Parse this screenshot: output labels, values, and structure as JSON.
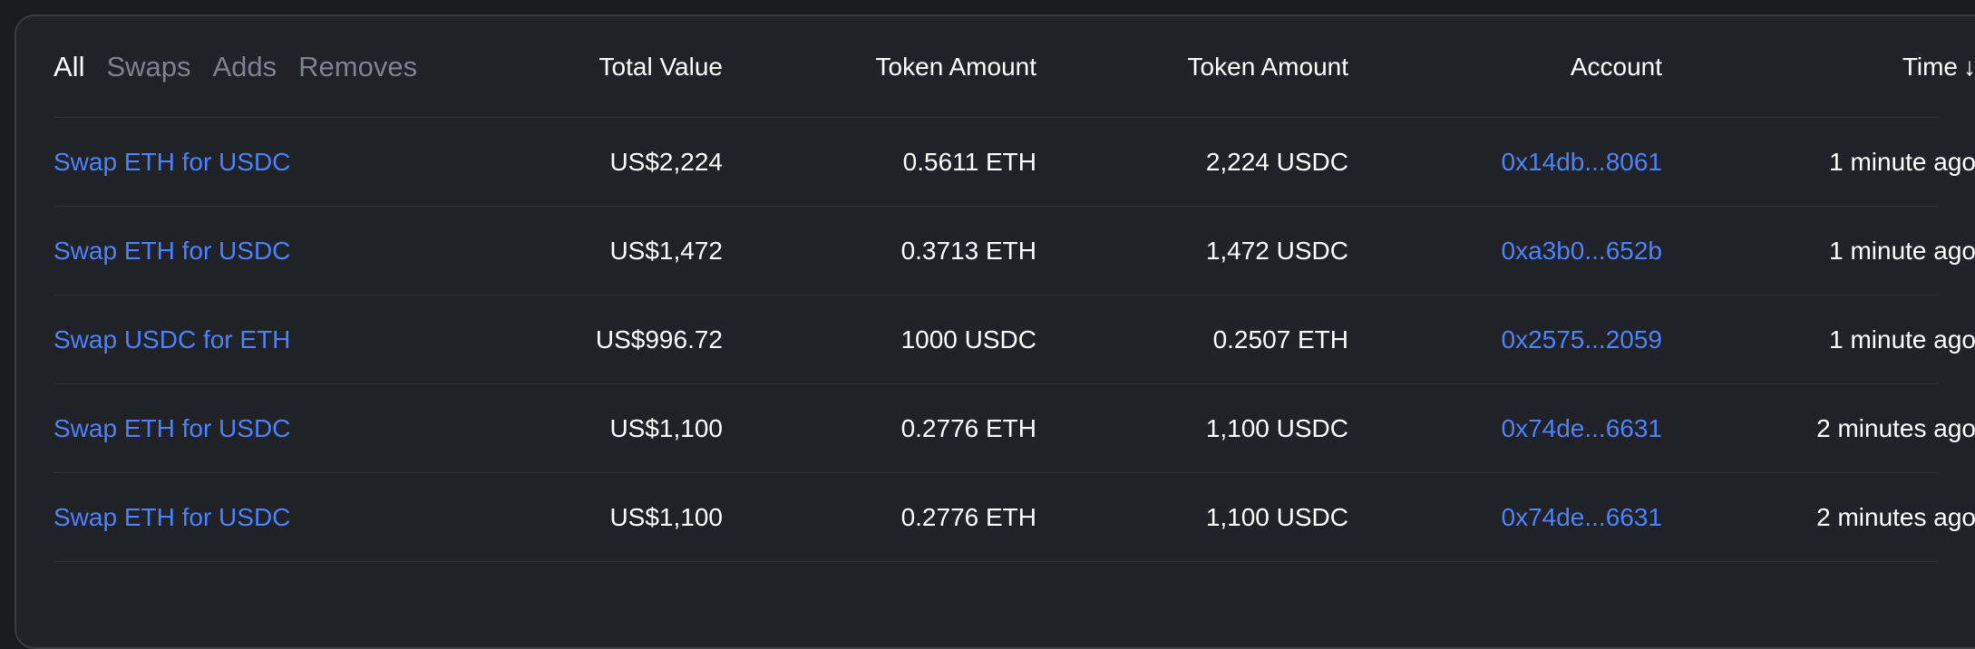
{
  "filters": [
    {
      "label": "All",
      "active": true
    },
    {
      "label": "Swaps",
      "active": false
    },
    {
      "label": "Adds",
      "active": false
    },
    {
      "label": "Removes",
      "active": false
    }
  ],
  "columns": {
    "total_value": "Total Value",
    "token_amount_1": "Token Amount",
    "token_amount_2": "Token Amount",
    "account": "Account",
    "time": "Time",
    "time_sort_icon": "arrow-down-icon",
    "time_sort_glyph": "↓"
  },
  "rows": [
    {
      "description": "Swap ETH for USDC",
      "total_value": "US$2,224",
      "token_amount_1": "0.5611 ETH",
      "token_amount_2": "2,224 USDC",
      "account": "0x14db...8061",
      "time": "1 minute ago"
    },
    {
      "description": "Swap ETH for USDC",
      "total_value": "US$1,472",
      "token_amount_1": "0.3713 ETH",
      "token_amount_2": "1,472 USDC",
      "account": "0xa3b0...652b",
      "time": "1 minute ago"
    },
    {
      "description": "Swap USDC for ETH",
      "total_value": "US$996.72",
      "token_amount_1": "1000 USDC",
      "token_amount_2": "0.2507 ETH",
      "account": "0x2575...2059",
      "time": "1 minute ago"
    },
    {
      "description": "Swap ETH for USDC",
      "total_value": "US$1,100",
      "token_amount_1": "0.2776 ETH",
      "token_amount_2": "1,100 USDC",
      "account": "0x74de...6631",
      "time": "2 minutes ago"
    },
    {
      "description": "Swap ETH for USDC",
      "total_value": "US$1,100",
      "token_amount_1": "0.2776 ETH",
      "token_amount_2": "1,100 USDC",
      "account": "0x74de...6631",
      "time": "2 minutes ago"
    }
  ],
  "colors": {
    "background": "#202227",
    "link": "#4c82fb",
    "text": "#ffffff",
    "muted": "#7e8290"
  }
}
